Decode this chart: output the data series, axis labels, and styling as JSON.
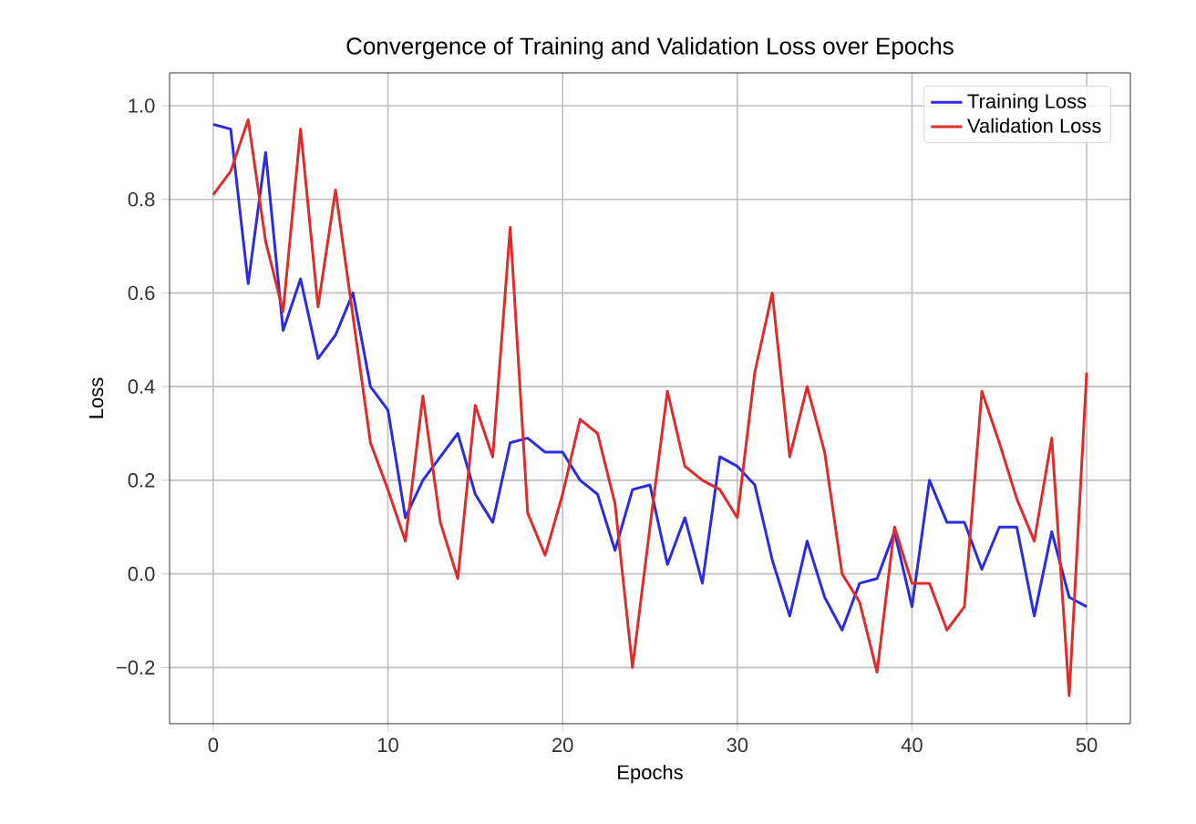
{
  "chart_data": {
    "type": "line",
    "title": "Convergence of Training and Validation Loss over Epochs",
    "xlabel": "Epochs",
    "ylabel": "Loss",
    "x": [
      0,
      1,
      2,
      3,
      4,
      5,
      6,
      7,
      8,
      9,
      10,
      11,
      12,
      13,
      14,
      15,
      16,
      17,
      18,
      19,
      20,
      21,
      22,
      23,
      24,
      25,
      26,
      27,
      28,
      29,
      30,
      31,
      32,
      33,
      34,
      35,
      36,
      37,
      38,
      39,
      40,
      41,
      42,
      43,
      44,
      45,
      46,
      47,
      48,
      49,
      50
    ],
    "series": [
      {
        "name": "Training Loss",
        "color": "#2b2be0",
        "values": [
          0.96,
          0.95,
          0.62,
          0.9,
          0.52,
          0.63,
          0.46,
          0.51,
          0.6,
          0.4,
          0.35,
          0.12,
          0.2,
          0.25,
          0.3,
          0.17,
          0.11,
          0.28,
          0.29,
          0.26,
          0.26,
          0.2,
          0.17,
          0.05,
          0.18,
          0.19,
          0.02,
          0.12,
          -0.02,
          0.25,
          0.23,
          0.19,
          0.03,
          -0.09,
          0.07,
          -0.05,
          -0.12,
          -0.02,
          -0.01,
          0.09,
          -0.07,
          0.2,
          0.11,
          0.11,
          0.01,
          0.1,
          0.1,
          -0.09,
          0.09,
          -0.05,
          -0.07
        ]
      },
      {
        "name": "Validation Loss",
        "color": "#e02b2b",
        "values": [
          0.81,
          0.86,
          0.97,
          0.71,
          0.56,
          0.95,
          0.57,
          0.82,
          0.55,
          0.28,
          0.18,
          0.07,
          0.38,
          0.11,
          -0.01,
          0.36,
          0.25,
          0.74,
          0.13,
          0.04,
          0.17,
          0.33,
          0.3,
          0.15,
          -0.2,
          0.1,
          0.39,
          0.23,
          0.2,
          0.18,
          0.12,
          0.43,
          0.6,
          0.25,
          0.4,
          0.26,
          0.0,
          -0.06,
          -0.21,
          0.1,
          -0.02,
          -0.02,
          -0.12,
          -0.07,
          0.39,
          0.28,
          0.16,
          0.07,
          0.29,
          -0.26,
          0.43
        ]
      }
    ],
    "xlim": [
      -2.5,
      52.5
    ],
    "ylim": [
      -0.32,
      1.07
    ],
    "xticks": [
      0,
      10,
      20,
      30,
      40,
      50
    ],
    "yticks": [
      {
        "value": -0.2,
        "label": "−0.2"
      },
      {
        "value": 0,
        "label": "0.0"
      },
      {
        "value": 0.2,
        "label": "0.2"
      },
      {
        "value": 0.4,
        "label": "0.4"
      },
      {
        "value": 0.6,
        "label": "0.6"
      },
      {
        "value": 0.8,
        "label": "0.8"
      },
      {
        "value": 1,
        "label": "1.0"
      }
    ],
    "grid": true,
    "legend": "top right",
    "line_style": "solid",
    "marker": "none"
  }
}
